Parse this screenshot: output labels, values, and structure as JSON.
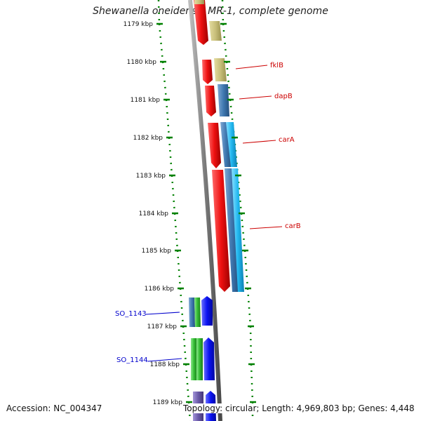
{
  "title": "Shewanella oneidensis MR-1, complete genome",
  "accession": "Accession: NC_004347",
  "topology": "Topology: circular; Length: 4,969,803 bp; Genes: 4,448",
  "ticks": [
    "1179 kbp",
    "1180 kbp",
    "1181 kbp",
    "1182 kbp",
    "1183 kbp",
    "1184 kbp",
    "1185 kbp",
    "1186 kbp",
    "1187 kbp",
    "1188 kbp",
    "1189 kbp"
  ],
  "gene_labels": [
    {
      "text": "fklB",
      "color": "red"
    },
    {
      "text": "dapB",
      "color": "red"
    },
    {
      "text": "carA",
      "color": "red"
    },
    {
      "text": "carB",
      "color": "red"
    },
    {
      "text": "SO_1143",
      "color": "blue"
    },
    {
      "text": "SO_1144",
      "color": "blue"
    }
  ],
  "colors": {
    "backbone": "#888888",
    "ticks": "#008000",
    "gene_red": "#ee1111",
    "gene_khaki": "#c8bf7a",
    "gene_steel": "#3f78b0",
    "gene_cyan": "#22b8f0",
    "gene_green": "#33bb33",
    "gene_blue": "#0a12f0",
    "gene_purple": "#6a5aa8"
  }
}
